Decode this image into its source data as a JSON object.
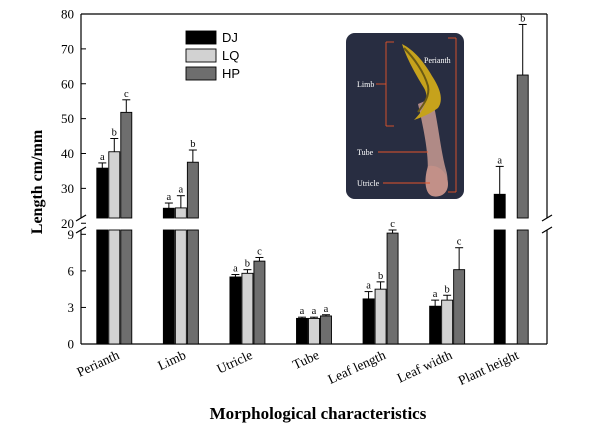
{
  "chart_data": {
    "type": "bar",
    "title": "",
    "xlabel": "Morphological characteristics",
    "ylabel": "Length cm/mm",
    "categories": [
      "Perianth",
      "Limb",
      "Utricle",
      "Tube",
      "Leaf length",
      "Leaf width",
      "Plant height"
    ],
    "broken_axis": {
      "lower_range": [
        0,
        9.6
      ],
      "lower_ticks": [
        "0",
        "3",
        "6",
        "9"
      ],
      "upper_range": [
        19.5,
        80
      ],
      "upper_ticks": [
        "20",
        "30",
        "40",
        "50",
        "60",
        "70",
        "80"
      ]
    },
    "series": [
      {
        "name": "DJ",
        "color": "#000000",
        "values": [
          35.8,
          24.3,
          5.5,
          2.1,
          3.7,
          3.1,
          28.3
        ],
        "errors": [
          1.5,
          1.5,
          0.2,
          0.1,
          0.6,
          0.5,
          8.0
        ],
        "letters": [
          "a",
          "a",
          "a",
          "a",
          "a",
          "a",
          "a"
        ]
      },
      {
        "name": "LQ",
        "color": "#d2d2d2",
        "values": [
          40.5,
          24.4,
          5.8,
          2.1,
          4.5,
          3.6,
          null
        ],
        "errors": [
          3.8,
          3.5,
          0.3,
          0.1,
          0.6,
          0.4,
          null
        ],
        "letters": [
          "b",
          "a",
          "b",
          "a",
          "b",
          "b",
          ""
        ]
      },
      {
        "name": "HP",
        "color": "#6e6e6e",
        "values": [
          51.8,
          37.5,
          6.8,
          2.3,
          9.1,
          6.1,
          62.5
        ],
        "errors": [
          3.6,
          3.5,
          0.3,
          0.1,
          0.7,
          1.8,
          14.5
        ],
        "letters": [
          "c",
          "b",
          "c",
          "a",
          "c",
          "c",
          "b"
        ]
      }
    ],
    "legend": {
      "position": "top-left",
      "entries": [
        "DJ",
        "LQ",
        "HP"
      ]
    },
    "inset_photo": {
      "labels": [
        "Perianth",
        "Limb",
        "Tube",
        "Utricle"
      ],
      "colors": {
        "background": "#1f2436",
        "limb": "#c6a21c",
        "tube": "#b08a86",
        "arrow": "#e2542a"
      }
    }
  }
}
